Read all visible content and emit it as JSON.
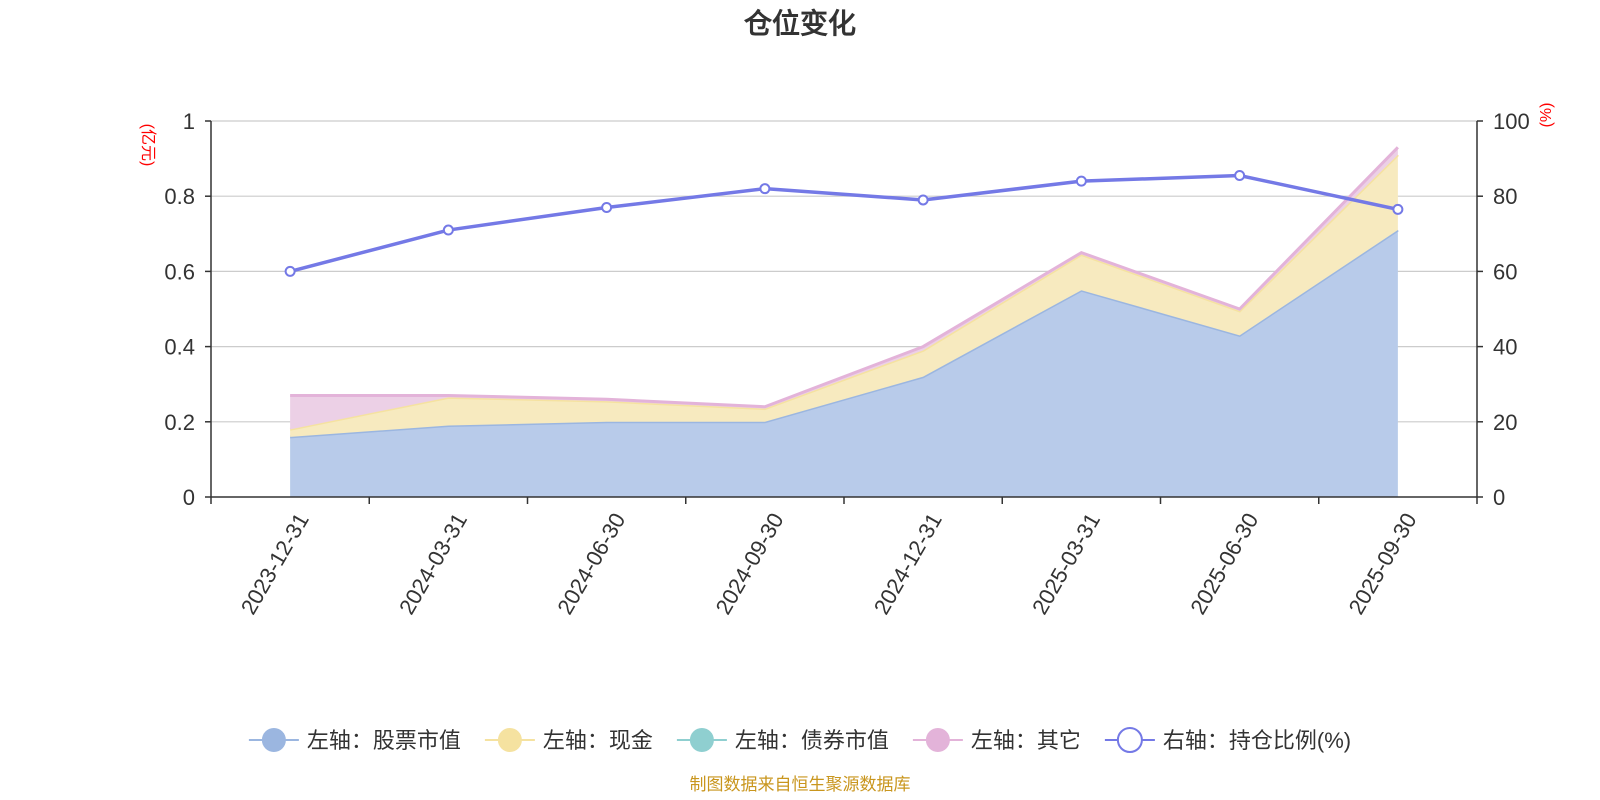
{
  "title": "仓位变化",
  "source_note": "制图数据来自恒生聚源数据库",
  "chart_data": {
    "type": "area",
    "title": "仓位变化",
    "categories": [
      "2023-12-31",
      "2024-03-31",
      "2024-06-30",
      "2024-09-30",
      "2024-12-31",
      "2025-03-31",
      "2025-06-30",
      "2025-09-30"
    ],
    "left_axis": {
      "unit": "(亿元)",
      "min": 0,
      "max": 1,
      "ticks": [
        "0",
        "0.2",
        "0.4",
        "0.6",
        "0.8",
        "1"
      ]
    },
    "right_axis": {
      "unit": "(%)",
      "min": 0,
      "max": 100,
      "ticks": [
        "0",
        "20",
        "40",
        "60",
        "80",
        "100"
      ]
    },
    "grid": true,
    "legend_position": "bottom",
    "series": [
      {
        "name": "左轴：股票市值",
        "axis": "left",
        "stack": true,
        "color": "#9bb6e0",
        "fill": "#b8cbea",
        "values": [
          0.16,
          0.19,
          0.2,
          0.2,
          0.32,
          0.55,
          0.43,
          0.71
        ]
      },
      {
        "name": "左轴：现金",
        "axis": "left",
        "stack": true,
        "color": "#f5e2a0",
        "fill": "#f7eabf",
        "values": [
          0.02,
          0.075,
          0.055,
          0.035,
          0.07,
          0.095,
          0.065,
          0.2
        ]
      },
      {
        "name": "左轴：债券市值",
        "axis": "left",
        "stack": true,
        "color": "#8fcfd0",
        "fill": "#b3dfe0",
        "values": [
          0,
          0,
          0,
          0,
          0,
          0,
          0,
          0
        ]
      },
      {
        "name": "左轴：其它",
        "axis": "left",
        "stack": true,
        "color": "#e3b3d9",
        "fill": "#ecd0e6",
        "values": [
          0.09,
          0.005,
          0.005,
          0.005,
          0.01,
          0.005,
          0.005,
          0.02
        ]
      },
      {
        "name": "右轴：持仓比例(%)",
        "axis": "right",
        "stack": false,
        "color": "#7479e6",
        "values": [
          60,
          71,
          77,
          82,
          79,
          84,
          85.5,
          76.5
        ]
      }
    ]
  }
}
